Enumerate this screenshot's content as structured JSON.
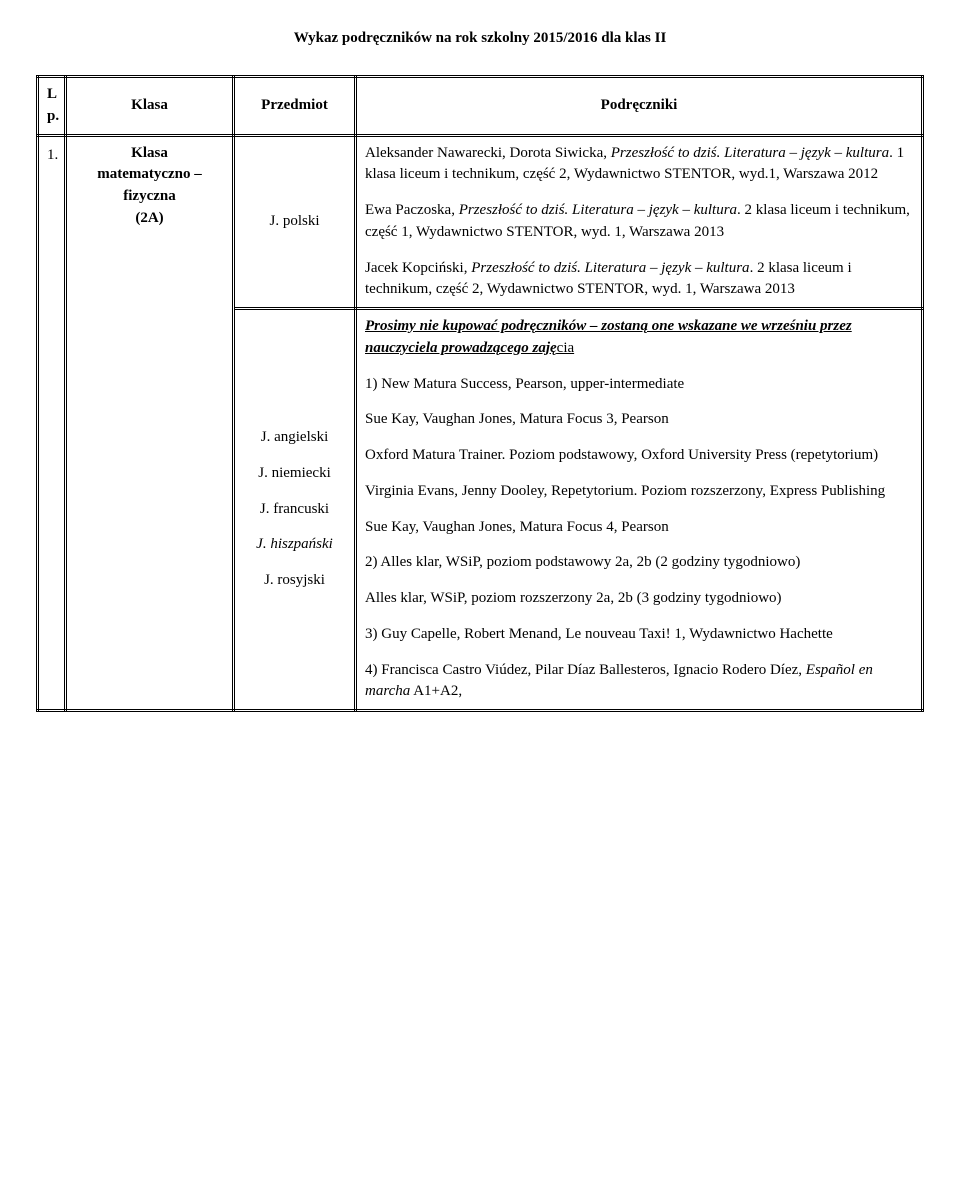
{
  "title": "Wykaz podręczników na rok szkolny 2015/2016 dla klas II",
  "headers": {
    "lp": "L p.",
    "klasa": "Klasa",
    "przedmiot": "Przedmiot",
    "podreczniki": "Podręczniki"
  },
  "row1": {
    "num": "1.",
    "klasa_line1": "Klasa",
    "klasa_line2": "matematyczno – fizyczna",
    "klasa_line3": "(2A)",
    "polski_label": "J. polski",
    "polski": {
      "p1a": "Aleksander Nawarecki, Dorota Siwicka, ",
      "p1b": "Przeszłość to dziś. Literatura – język – kultura",
      "p1c": ". 1 klasa liceum i technikum, część 2, Wydawnictwo STENTOR, wyd.1, Warszawa 2012",
      "p2a": "Ewa Paczoska, ",
      "p2b": "Przeszłość to dziś. Literatura – język – kultura",
      "p2c": ". 2 klasa liceum i technikum, część 1, Wydawnictwo STENTOR, wyd. 1, Warszawa 2013",
      "p3a": "Jacek Kopciński, ",
      "p3b": "Przeszłość to dziś. Literatura – język – kultura",
      "p3c": ". 2 klasa liceum i technikum, część 2, Wydawnictwo STENTOR, wyd. 1, Warszawa 2013"
    },
    "lang_labels": {
      "ang": "J. angielski",
      "niem": "J. niemiecki",
      "fr": "J. francuski",
      "hiszp": "J. hiszpański",
      "ros": "J. rosyjski"
    },
    "lang": {
      "lead_a": "Prosimy nie kupować podręczników – zostaną one wskazane we wrześniu przez nauczyciela prowadzącego zaję",
      "lead_b": "cia",
      "p1": "1) New Matura Success, Pearson, upper-intermediate",
      "p2": "Sue Kay, Vaughan Jones, Matura Focus 3, Pearson",
      "p3": "Oxford Matura Trainer. Poziom podstawowy, Oxford University Press (repetytorium)",
      "p4": "Virginia Evans, Jenny Dooley, Repetytorium. Poziom rozszerzony, Express Publishing",
      "p5": "Sue Kay, Vaughan Jones, Matura Focus 4, Pearson",
      "p6": "2) Alles klar, WSiP, poziom podstawowy 2a, 2b (2 godziny tygodniowo)",
      "p7": "Alles klar, WSiP, poziom rozszerzony 2a, 2b (3 godziny tygodniowo)",
      "p8a": "3) Guy Capelle, Robert Menand, Le nouveau Taxi! 1, ",
      "p8b": "Wydawnictwo Hachette",
      "p9a": "4) Francisca Castro Viúdez, Pilar Díaz Ballesteros, Ignacio Rodero Díez, ",
      "p9b": "Español en marcha",
      "p9c": " A1+A2,"
    }
  }
}
